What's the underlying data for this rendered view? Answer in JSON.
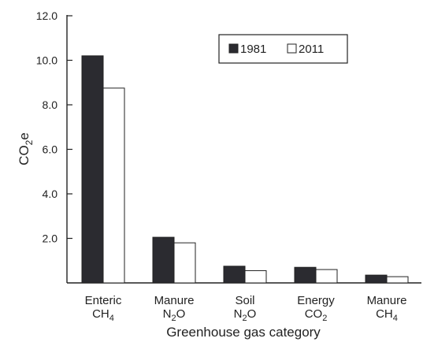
{
  "chart_data": {
    "type": "bar",
    "title": "",
    "xlabel": "Greenhouse gas category",
    "ylabel": {
      "base": "CO",
      "sub": "2",
      "tail": "e"
    },
    "ylim": [
      0,
      12
    ],
    "yticks": [
      "2.0",
      "4.0",
      "6.0",
      "8.0",
      "10.0",
      "12.0"
    ],
    "grid": false,
    "legend_position": "top-right",
    "categories": [
      {
        "line1": "Enteric",
        "line2_base": "CH",
        "line2_sub": "4"
      },
      {
        "line1": "Manure",
        "line2_base": "N",
        "line2_sub": "2",
        "line2_tail": "O"
      },
      {
        "line1": "Soil",
        "line2_base": "N",
        "line2_sub": "2",
        "line2_tail": "O"
      },
      {
        "line1": "Energy",
        "line2_base": "CO",
        "line2_sub": "2"
      },
      {
        "line1": "Manure",
        "line2_base": "CH",
        "line2_sub": "4"
      }
    ],
    "series": [
      {
        "name": "1981",
        "color": "#2b2b30",
        "values": [
          10.2,
          2.05,
          0.75,
          0.7,
          0.35
        ]
      },
      {
        "name": "2011",
        "color": "#ffffff",
        "values": [
          8.75,
          1.8,
          0.55,
          0.6,
          0.28
        ]
      }
    ]
  }
}
